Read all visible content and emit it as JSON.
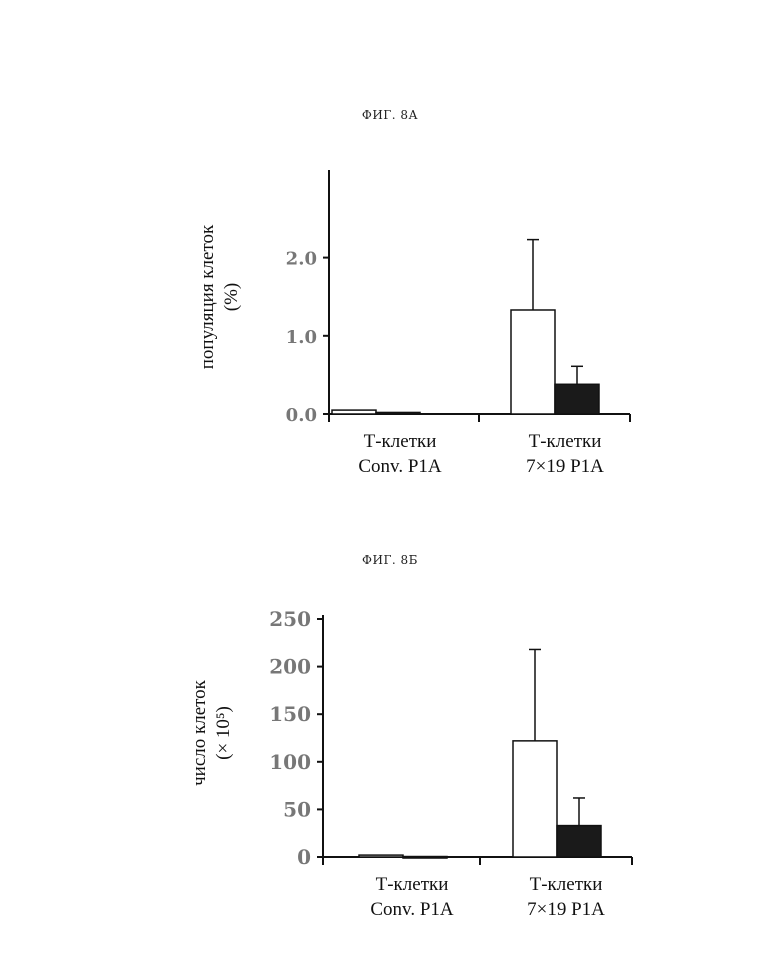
{
  "chart_data": [
    {
      "type": "bar",
      "title": "ФИГ. 8А",
      "ylabel_line1": "популяция клеток",
      "ylabel_line2": "(%)",
      "categories": [
        {
          "line1": "Т-клетки",
          "line2": "Conv. P1A"
        },
        {
          "line1": "Т-клетки",
          "line2": "7×19 P1A"
        }
      ],
      "series": [
        {
          "color": "#ffffff",
          "values": [
            0.05,
            1.33
          ],
          "error": [
            0,
            0.9
          ]
        },
        {
          "color": "#1a1a1a",
          "values": [
            0.02,
            0.38
          ],
          "error": [
            0,
            0.23
          ]
        }
      ],
      "ylim": [
        0,
        2.5
      ],
      "yticks": [
        "0.0",
        "1.0",
        "2.0"
      ],
      "ytick_values": [
        0,
        1,
        2
      ]
    },
    {
      "type": "bar",
      "title": "ФИГ. 8Б",
      "ylabel_line1": "число клеток",
      "ylabel_line2": "(× 10⁵)",
      "categories": [
        {
          "line1": "Т-клетки",
          "line2": "Conv. P1A"
        },
        {
          "line1": "Т-клетки",
          "line2": "7×19 P1A"
        }
      ],
      "series": [
        {
          "color": "#ffffff",
          "values": [
            2,
            122
          ],
          "error": [
            0,
            96
          ]
        },
        {
          "color": "#1a1a1a",
          "values": [
            0.5,
            33
          ],
          "error": [
            0,
            29
          ]
        }
      ],
      "ylim": [
        0,
        250
      ],
      "yticks": [
        "0",
        "50",
        "100",
        "150",
        "200",
        "250"
      ],
      "ytick_values": [
        0,
        50,
        100,
        150,
        200,
        250
      ]
    }
  ]
}
